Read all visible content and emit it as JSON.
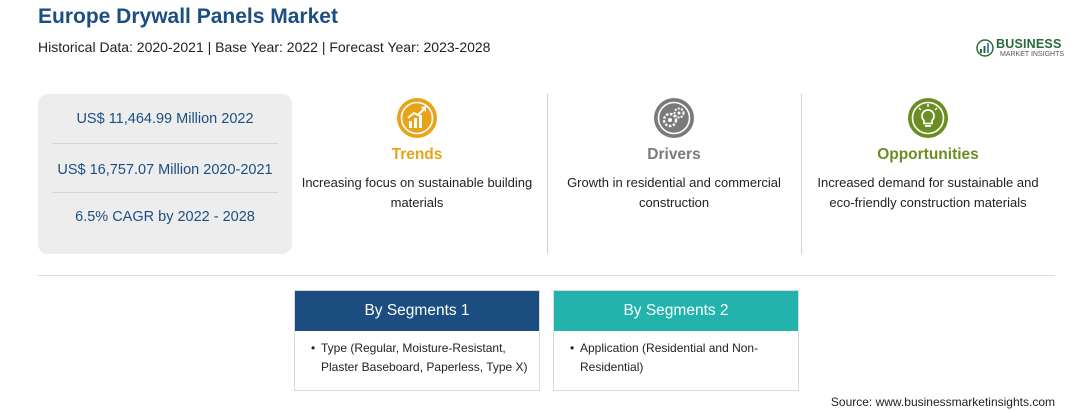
{
  "header": {
    "title": "Europe Drywall Panels Market",
    "subtitle": "Historical Data: 2020-2021 | Base Year: 2022 | Forecast Year: 2023-2028"
  },
  "logo": {
    "name": "BUSINESS",
    "tagline": "MARKET INSIGHTS",
    "color": "#2a6a3a"
  },
  "stats": [
    "US$ 11,464.99 Million 2022",
    "US$ 16,757.07 Million 2020-2021",
    "6.5% CAGR by 2022 - 2028"
  ],
  "columns": [
    {
      "icon": "chart-growth-icon",
      "title": "Trends",
      "text": "Increasing focus on sustainable building materials",
      "color": "#e9a319"
    },
    {
      "icon": "gears-icon",
      "title": "Drivers",
      "text": "Growth in residential and commercial construction",
      "color": "#7a7a7a"
    },
    {
      "icon": "lightbulb-icon",
      "title": "Opportunities",
      "text": "Increased demand for sustainable and eco-friendly construction materials",
      "color": "#6b8e23"
    }
  ],
  "segments": [
    {
      "title": "By Segments 1",
      "item": "Type (Regular, Moisture-Resistant, Plaster Baseboard, Paperless, Type X)",
      "color": "#1b4d80"
    },
    {
      "title": "By Segments 2",
      "item": "Application (Residential and Non-Residential)",
      "color": "#22b3ad"
    }
  ],
  "footer": {
    "source": "Source: www.businessmarketinsights.com"
  }
}
